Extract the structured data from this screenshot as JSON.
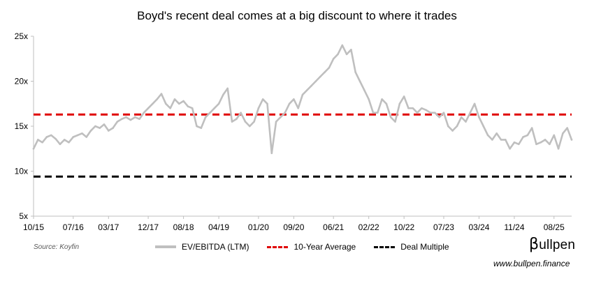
{
  "chart_data": {
    "type": "line",
    "title": "Boyd's recent deal comes at a big discount to where it trades",
    "xlabel": "",
    "ylabel": "",
    "ylim": [
      5,
      25
    ],
    "yticks": [
      5,
      10,
      15,
      20,
      25
    ],
    "ytick_labels": [
      "5x",
      "10x",
      "15x",
      "20x",
      "25x"
    ],
    "xlim": [
      0,
      122
    ],
    "xticks": [
      0,
      9,
      17,
      26,
      34,
      42,
      51,
      59,
      68,
      76,
      84,
      93,
      101,
      109,
      118
    ],
    "xtick_labels": [
      "10/15",
      "07/16",
      "03/17",
      "12/17",
      "08/18",
      "04/19",
      "01/20",
      "09/20",
      "06/21",
      "02/22",
      "10/22",
      "07/23",
      "03/24",
      "11/24",
      "08/25"
    ],
    "grid": false,
    "legend_position": "bottom",
    "series": [
      {
        "name": "EV/EBITDA (LTM)",
        "color": "#bfbfbf",
        "style": "solid",
        "x": [
          0,
          1,
          2,
          3,
          4,
          5,
          6,
          7,
          8,
          9,
          10,
          11,
          12,
          13,
          14,
          15,
          16,
          17,
          18,
          19,
          20,
          21,
          22,
          23,
          24,
          25,
          26,
          27,
          28,
          29,
          30,
          31,
          32,
          33,
          34,
          35,
          36,
          37,
          38,
          39,
          40,
          41,
          42,
          43,
          44,
          45,
          46,
          47,
          48,
          49,
          50,
          51,
          52,
          53,
          54,
          55,
          56,
          57,
          58,
          59,
          60,
          61,
          62,
          63,
          64,
          65,
          66,
          67,
          68,
          69,
          70,
          71,
          72,
          73,
          74,
          75,
          76,
          77,
          78,
          79,
          80,
          81,
          82,
          83,
          84,
          85,
          86,
          87,
          88,
          89,
          90,
          91,
          92,
          93,
          94,
          95,
          96,
          97,
          98,
          99,
          100,
          101,
          102,
          103,
          104,
          105,
          106,
          107,
          108,
          109,
          110,
          111,
          112,
          113,
          114,
          115,
          116,
          117,
          118,
          119,
          120,
          121,
          122
        ],
        "values": [
          12.5,
          13.5,
          13.2,
          13.8,
          14.0,
          13.6,
          13.0,
          13.5,
          13.2,
          13.8,
          14.0,
          14.2,
          13.8,
          14.5,
          15.0,
          14.8,
          15.2,
          14.5,
          14.8,
          15.5,
          15.8,
          16.0,
          15.7,
          16.0,
          15.8,
          16.5,
          17.0,
          17.5,
          18.0,
          18.6,
          17.5,
          17.0,
          18.0,
          17.5,
          17.8,
          17.2,
          17.0,
          15.0,
          14.8,
          16.0,
          16.5,
          17.0,
          17.5,
          18.5,
          19.2,
          15.5,
          15.8,
          16.5,
          15.5,
          15.0,
          15.5,
          17.0,
          18.0,
          17.5,
          12.0,
          15.5,
          16.0,
          16.5,
          17.5,
          18.0,
          17.0,
          18.5,
          19.0,
          19.5,
          20.0,
          20.5,
          21.0,
          21.5,
          22.5,
          23.0,
          24.0,
          23.0,
          23.5,
          21.0,
          20.0,
          19.0,
          18.0,
          16.5,
          16.5,
          18.0,
          17.5,
          16.0,
          15.5,
          17.5,
          18.3,
          17.0,
          17.0,
          16.5,
          17.0,
          16.8,
          16.5,
          16.5,
          16.0,
          16.5,
          15.0,
          14.5,
          15.0,
          16.0,
          15.5,
          16.5,
          17.5,
          16.0,
          15.0,
          14.0,
          13.5,
          14.2,
          13.5,
          13.5,
          12.5,
          13.2,
          13.0,
          13.8,
          14.0,
          14.8,
          13.0,
          13.2,
          13.5,
          13.0,
          14.0,
          12.5,
          14.2,
          14.8,
          13.5
        ]
      },
      {
        "name": "10-Year Average",
        "color": "#e00000",
        "style": "dashed",
        "constant": 16.3
      },
      {
        "name": "Deal Multiple",
        "color": "#000000",
        "style": "dashed",
        "constant": 9.4
      }
    ]
  },
  "source_text": "Source: Koyfin",
  "brand": {
    "symbol": "β",
    "name": "ullpen",
    "url": "www.bullpen.finance"
  }
}
